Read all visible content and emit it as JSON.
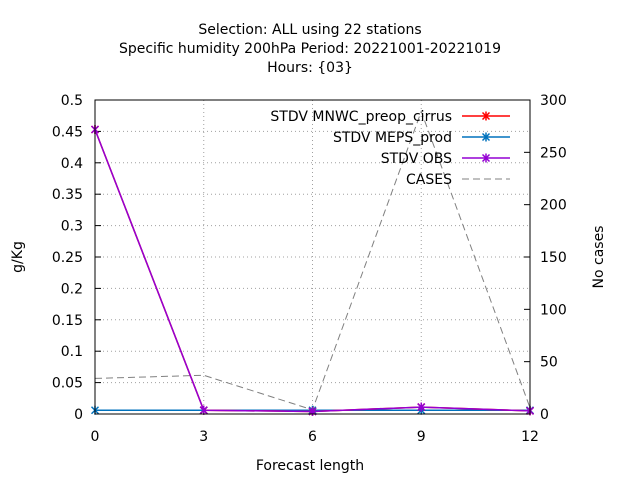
{
  "chart_data": {
    "type": "line",
    "title_lines": [
      "Selection: ALL using    22 stations",
      "Specific humidity 200hPa   Period: 20221001-20221019",
      "Hours: {03}"
    ],
    "xlabel": "Forecast length",
    "ylabel": "g/Kg",
    "y2label": "No cases",
    "x": [
      0,
      3,
      6,
      9,
      12
    ],
    "xlim": [
      0,
      12
    ],
    "ylim": [
      0,
      0.5
    ],
    "y2lim": [
      0,
      300
    ],
    "x_ticks": [
      "0",
      "3",
      "6",
      "9",
      "12"
    ],
    "y_ticks": [
      "0",
      "0.05",
      "0.1",
      "0.15",
      "0.2",
      "0.25",
      "0.3",
      "0.35",
      "0.4",
      "0.45",
      "0.5"
    ],
    "y2_ticks": [
      "0",
      "50",
      "100",
      "150",
      "200",
      "250",
      "300"
    ],
    "grid": true,
    "legend_position": "top-right",
    "series": [
      {
        "name": "STDV MNWC_preop_cirrus",
        "axis": "y",
        "color": "#ff0000",
        "style": "solid",
        "marker": "x",
        "values": [
          0.453,
          0.006,
          0.004,
          0.011,
          0.005
        ]
      },
      {
        "name": "STDV MEPS_prod",
        "axis": "y",
        "color": "#0072bd",
        "style": "solid",
        "marker": "x",
        "values": [
          0.006,
          0.006,
          0.006,
          0.006,
          0.006
        ]
      },
      {
        "name": "STDV OBS",
        "axis": "y",
        "color": "#9400d3",
        "style": "solid",
        "marker": "x",
        "values": [
          0.453,
          0.006,
          0.004,
          0.011,
          0.005
        ]
      },
      {
        "name": "CASES",
        "axis": "y2",
        "color": "#808080",
        "style": "dashed",
        "marker": "",
        "values": [
          34,
          37,
          4,
          289,
          6
        ]
      }
    ]
  }
}
